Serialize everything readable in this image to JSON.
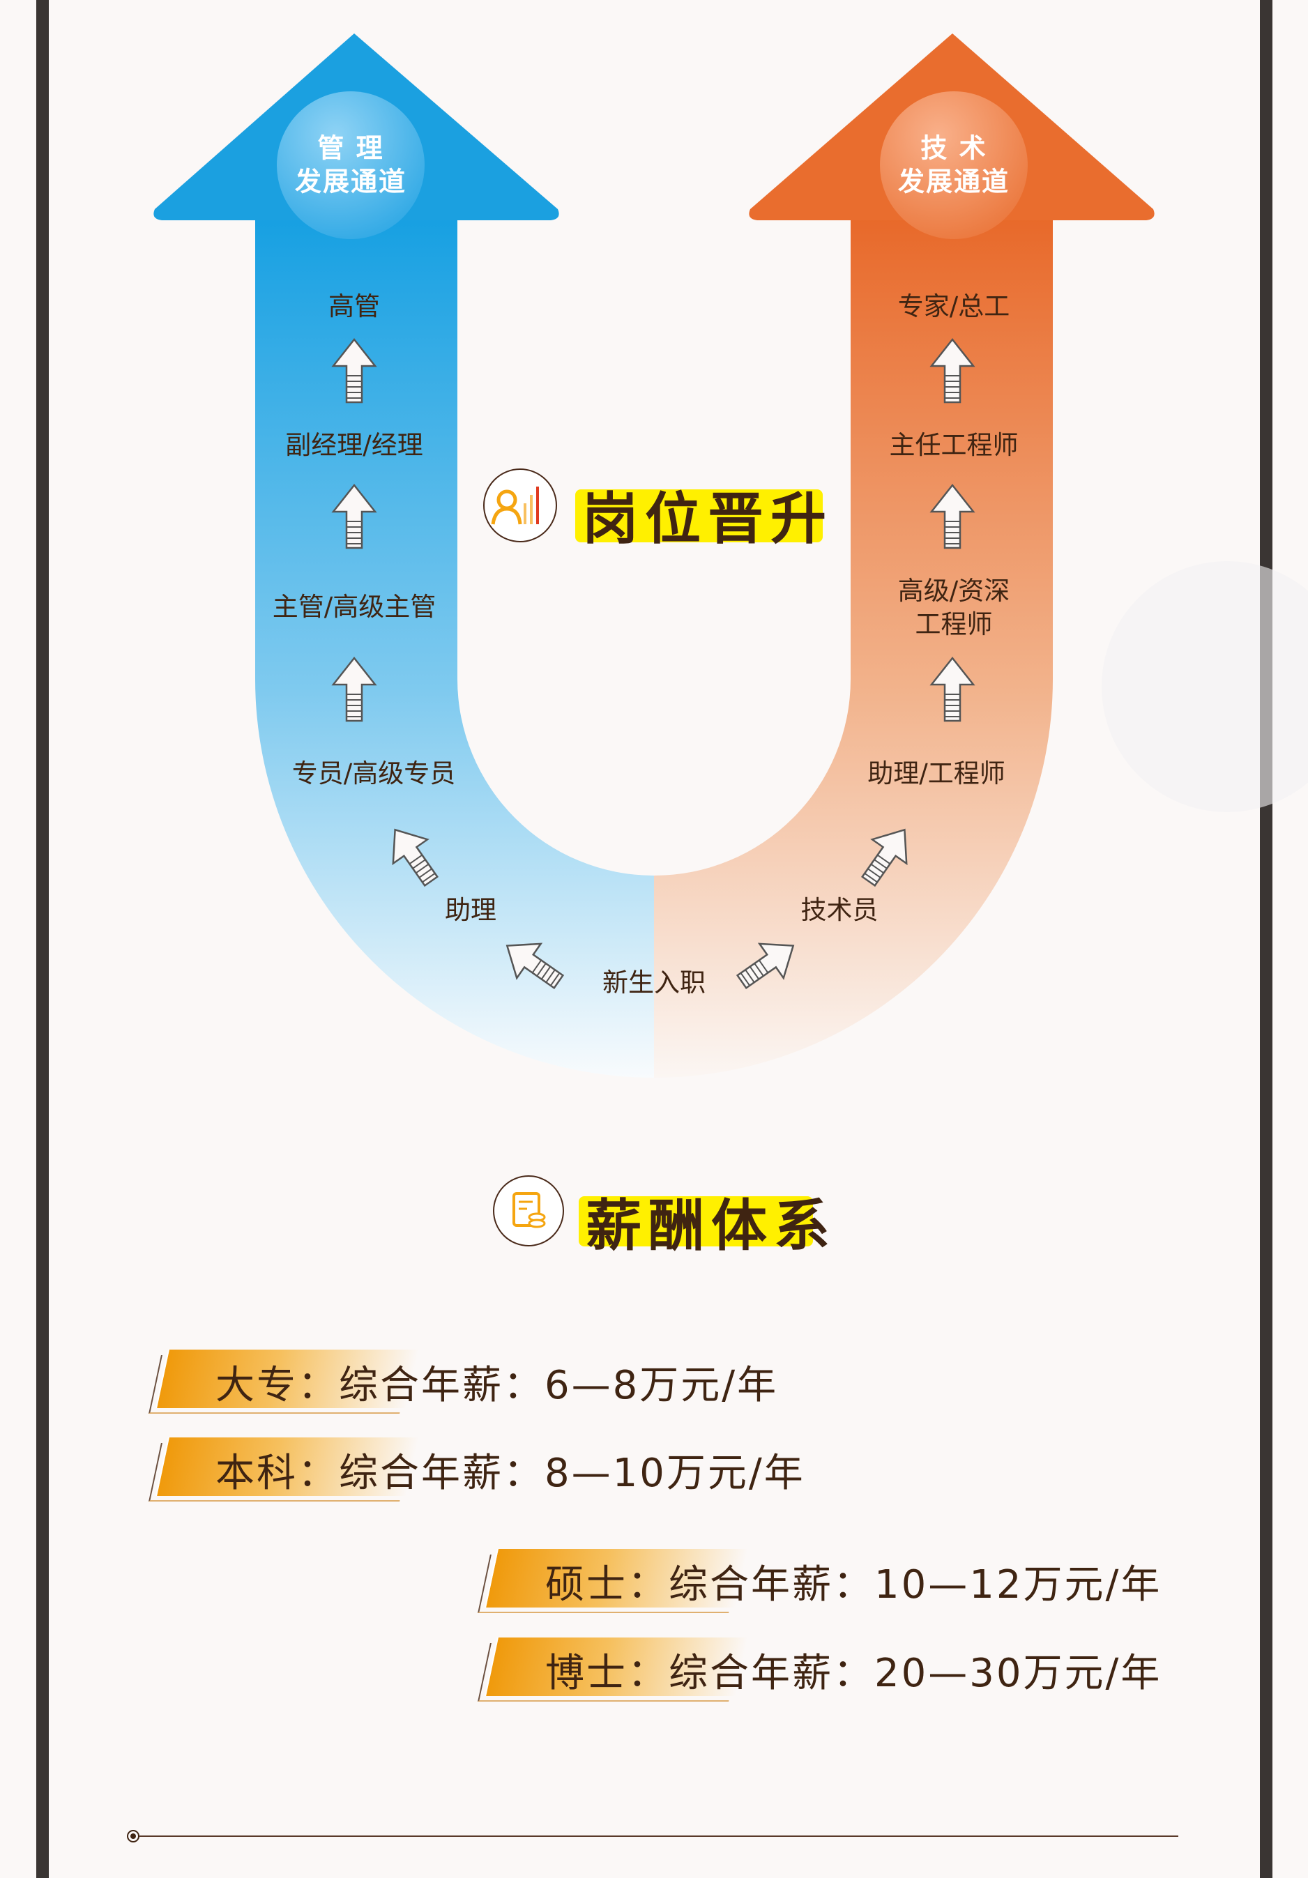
{
  "career": {
    "title": "岗位晋升",
    "management": {
      "badge_line1": "管 理",
      "badge_line2": "发展通道",
      "color": "#1a9fe0",
      "levels": [
        "高管",
        "副经理/经理",
        "主管/高级主管",
        "专员/高级专员",
        "助理"
      ]
    },
    "technical": {
      "badge_line1": "技 术",
      "badge_line2": "发展通道",
      "color": "#e8692a",
      "levels": [
        "专家/总工",
        "主任工程师",
        "高级/资深",
        "工程师",
        "助理/工程师",
        "技术员"
      ]
    },
    "entry": "新生入职"
  },
  "salary": {
    "title": "薪酬体系",
    "rows": [
      {
        "degree": "大专：",
        "text": "综合年薪：6—8万元/年"
      },
      {
        "degree": "本科：",
        "text": "综合年薪：8—10万元/年"
      },
      {
        "degree": "硕士：",
        "text": "综合年薪：10—12万元/年"
      },
      {
        "degree": "博士：",
        "text": "综合年薪：20—30万元/年"
      }
    ]
  },
  "colors": {
    "text": "#3f2412",
    "highlight": "#fff000",
    "banner": "#f09a0c"
  }
}
